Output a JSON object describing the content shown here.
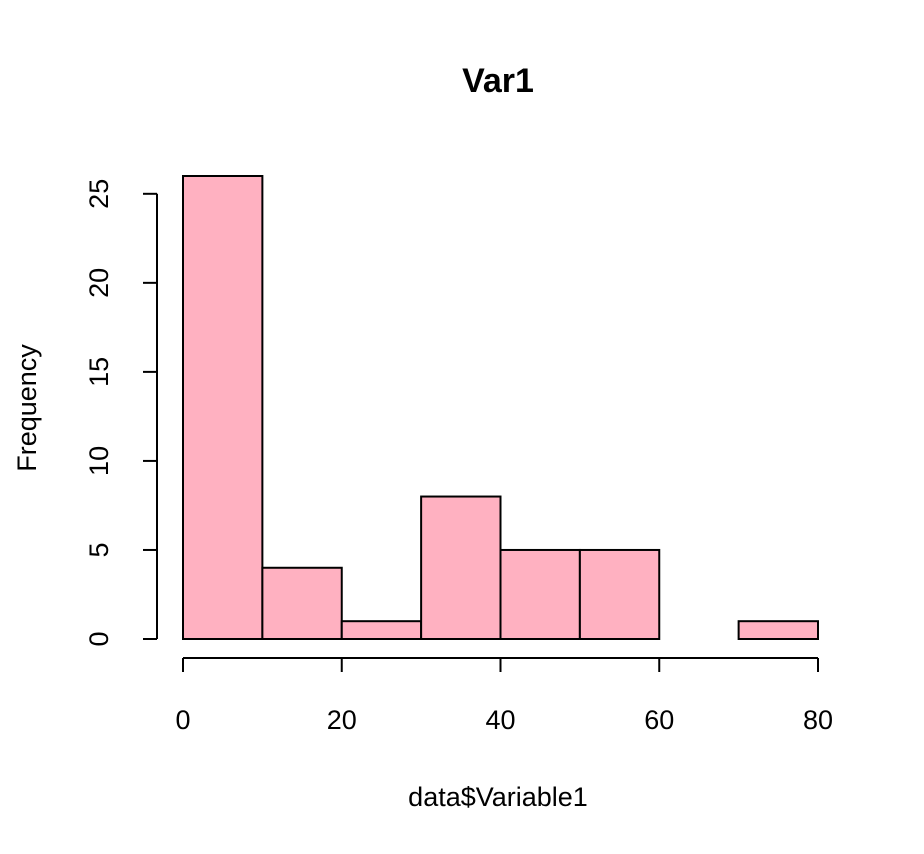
{
  "chart_data": {
    "type": "bar",
    "title": "Var1",
    "xlabel": "data$Variable1",
    "ylabel": "Frequency",
    "bins": [
      {
        "x0": 0,
        "x1": 10,
        "count": 26
      },
      {
        "x0": 10,
        "x1": 20,
        "count": 4
      },
      {
        "x0": 20,
        "x1": 30,
        "count": 1
      },
      {
        "x0": 30,
        "x1": 40,
        "count": 8
      },
      {
        "x0": 40,
        "x1": 50,
        "count": 5
      },
      {
        "x0": 50,
        "x1": 60,
        "count": 5
      },
      {
        "x0": 60,
        "x1": 70,
        "count": 0
      },
      {
        "x0": 70,
        "x1": 80,
        "count": 1
      }
    ],
    "xlim": [
      0,
      80
    ],
    "ylim": [
      0,
      26
    ],
    "xticks": [
      "0",
      "20",
      "40",
      "60",
      "80"
    ],
    "yticks": [
      "0",
      "5",
      "10",
      "15",
      "20",
      "25"
    ],
    "bar_color": "#ffb1c1",
    "grid": false,
    "legend": "none"
  }
}
